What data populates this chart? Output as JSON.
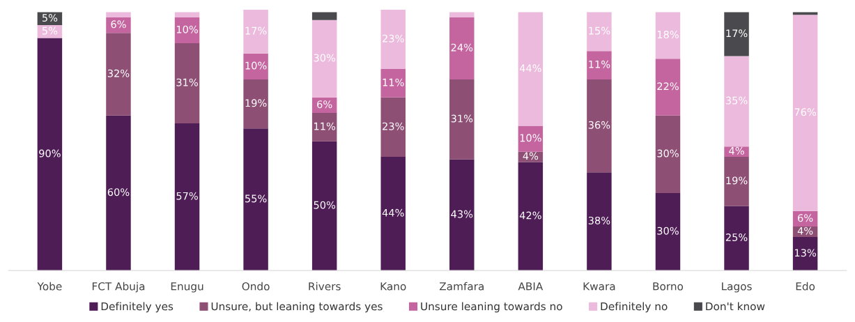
{
  "chart_data": {
    "type": "bar",
    "stacked": true,
    "legend": "bottom",
    "grid": false,
    "tick_labels": "x",
    "categories": [
      "Yobe",
      "FCT Abuja",
      "Enugu",
      "Ondo",
      "Rivers",
      "Kano",
      "Zamfara",
      "ABIA",
      "Kwara",
      "Borno",
      "Lagos",
      "Edo"
    ],
    "series": [
      {
        "name": "Definitely yes",
        "color": "#4f1d56",
        "values": [
          90,
          60,
          57,
          55,
          50,
          44,
          43,
          42,
          38,
          30,
          25,
          13
        ],
        "value_labels": [
          "90%",
          "60%",
          "57%",
          "55%",
          "50%",
          "44%",
          "43%",
          "42%",
          "38%",
          "30%",
          "25%",
          "13%"
        ]
      },
      {
        "name": "Unsure, but leaning towards yes",
        "color": "#8e4f75",
        "values": [
          0,
          32,
          31,
          19,
          11,
          23,
          31,
          4,
          36,
          30,
          19,
          4
        ],
        "value_labels": [
          null,
          "32%",
          "31%",
          "19%",
          "11%",
          "23%",
          "31%",
          "4%",
          "36%",
          "30%",
          "19%",
          "4%"
        ]
      },
      {
        "name": "Unsure leaning towards no",
        "color": "#c565a0",
        "values": [
          0,
          6,
          10,
          10,
          6,
          11,
          24,
          10,
          11,
          22,
          4,
          6
        ],
        "value_labels": [
          null,
          "6%",
          "10%",
          "10%",
          "6%",
          "11%",
          "24%",
          "10%",
          "11%",
          "22%",
          "4%",
          "6%"
        ]
      },
      {
        "name": "Definitely no",
        "color": "#ecbadc",
        "values": [
          5,
          2,
          2,
          17,
          30,
          23,
          2,
          44,
          15,
          18,
          35,
          76
        ],
        "value_labels": [
          "5%",
          null,
          null,
          "17%",
          "30%",
          "23%",
          null,
          "44%",
          "15%",
          "18%",
          "35%",
          "76%"
        ]
      },
      {
        "name": "Don't know",
        "color": "#4a4a4e",
        "values": [
          5,
          0,
          0,
          0,
          3,
          0,
          0,
          0,
          0,
          0,
          17,
          1
        ],
        "value_labels": [
          "5%",
          null,
          null,
          null,
          null,
          null,
          null,
          null,
          null,
          null,
          "17%",
          null
        ]
      }
    ]
  }
}
